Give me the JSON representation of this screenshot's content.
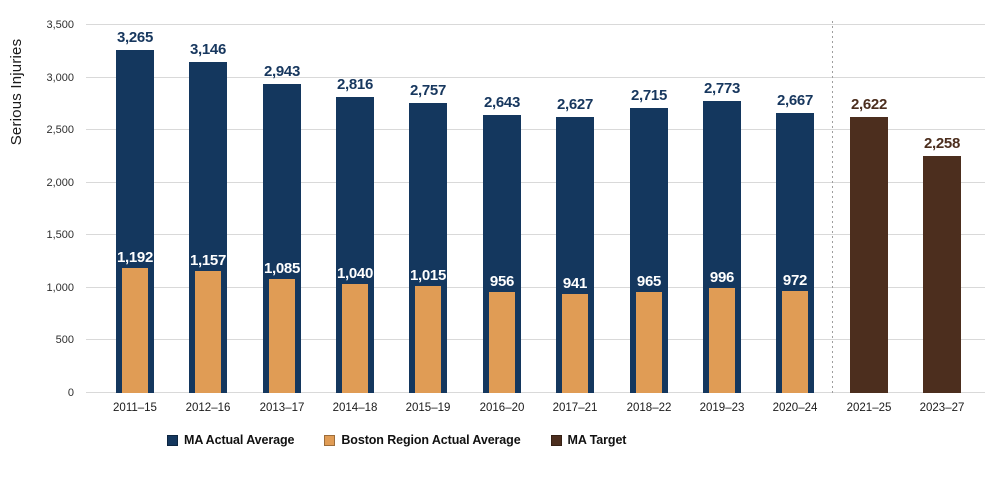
{
  "chart_data": {
    "type": "bar",
    "title": "",
    "ylabel": "Serious Injuries",
    "xlabel": "",
    "ylim": [
      0,
      3500
    ],
    "ytick_interval": 500,
    "ytick_labels": [
      "0",
      "500",
      "1,000",
      "1,500",
      "2,000",
      "2,500",
      "3,000",
      "3,500"
    ],
    "grid": true,
    "legend_position": "bottom",
    "categories": [
      "2011–15",
      "2012–16",
      "2013–17",
      "2014–18",
      "2015–19",
      "2016–20",
      "2017–21",
      "2018–22",
      "2019–23",
      "2020–24",
      "2021–25",
      "2023–27"
    ],
    "separator_after_category": "2020–24",
    "separator_style": "dashed",
    "colors": {
      "gridline": "#d9d9d9",
      "separator": "#9e9e9e",
      "axis_text": "#2e2e2e"
    },
    "series": [
      {
        "name": "MA Actual Average",
        "color": "#14375E",
        "label_color": "#17375E",
        "values": [
          3265,
          3146,
          2943,
          2816,
          2757,
          2643,
          2627,
          2715,
          2773,
          2667,
          null,
          null
        ],
        "data_labels": [
          "3,265",
          "3,146",
          "2,943",
          "2,816",
          "2,757",
          "2,643",
          "2,627",
          "2,715",
          "2,773",
          "2,667",
          null,
          null
        ]
      },
      {
        "name": "Boston Region Actual Average",
        "color": "#E09C55",
        "label_color": "#FFFFFF",
        "values": [
          1192,
          1157,
          1085,
          1040,
          1015,
          956,
          941,
          965,
          996,
          972,
          null,
          null
        ],
        "data_labels": [
          "1,192",
          "1,157",
          "1,085",
          "1,040",
          "1,015",
          "956",
          "941",
          "965",
          "996",
          "972",
          null,
          null
        ]
      },
      {
        "name": "MA Target",
        "color": "#4C2E1E",
        "label_color": "#4C2E1E",
        "values": [
          null,
          null,
          null,
          null,
          null,
          null,
          null,
          null,
          null,
          null,
          2622,
          2258
        ],
        "data_labels": [
          null,
          null,
          null,
          null,
          null,
          null,
          null,
          null,
          null,
          null,
          "2,622",
          "2,258"
        ]
      }
    ]
  }
}
